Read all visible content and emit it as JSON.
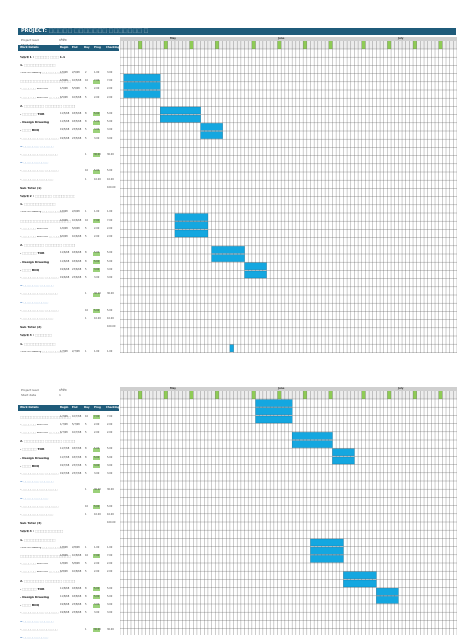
{
  "page_title": "PROJECT: ⬚⬚⬚⬚⬚ ⬚⬚⬚⬚⬚⬚⬚ ⬚⬚⬚⬚⬚⬚⬚ ⬚",
  "meta": [
    {
      "label": "Project lead",
      "value": "บริษัท"
    },
    {
      "label": "Start date",
      "value": "1"
    }
  ],
  "months": [
    "May",
    "June",
    "July"
  ],
  "columns": {
    "task": "Work Details",
    "start": "Begin",
    "end": "End",
    "days": "Day",
    "pct": "Prog",
    "hours": "Checking"
  },
  "rows": [
    {
      "task": "ระยะที่ 1 : ⬚⬚⬚⬚⬚ ⬚⬚⬚ 1.1",
      "type": "bold",
      "start": "",
      "end": "",
      "days": "",
      "pct": "",
      "hours": ""
    },
    {
      "task": "1. ⬚⬚⬚⬚⬚⬚⬚⬚⬚⬚⬚",
      "type": "bold",
      "start": "",
      "end": "",
      "days": "",
      "pct": "",
      "hours": ""
    },
    {
      "task": "- Kick Off Meeting ⬚⬚⬚⬚⬚⬚⬚⬚⬚⬚",
      "type": "",
      "start": "1/5/68",
      "end": "2/5/68",
      "days": "2",
      "pct": "1.00",
      "hours": "3.00"
    },
    {
      "task": "⬚⬚⬚⬚⬚⬚⬚⬚⬚⬚⬚⬚⬚⬚⬚⬚⬚⬚",
      "type": "bold",
      "start": "1/5/68",
      "end": "10/5/68",
      "days": "10",
      "pct": "7.00",
      "hours": "7.00"
    },
    {
      "task": "- ⬚⬚⬚⬚ ⬚⬚ Boom Lift",
      "type": "",
      "start": "1/5/68",
      "end": "5/5/68",
      "days": "5",
      "pct": "2.00",
      "hours": "2.00"
    },
    {
      "task": "- ⬚⬚⬚⬚ ⬚⬚ Boom Lift ⬚⬚ ⬚⬚⬚",
      "type": "",
      "start": "6/5/68",
      "end": "10/5/68",
      "days": "5",
      "pct": "2.00",
      "hours": "2.00"
    },
    {
      "task": "2. ⬚⬚⬚⬚⬚⬚⬚ ⬚⬚⬚⬚⬚⬚ ⬚⬚⬚⬚⬚⬚ TOR",
      "type": "bold",
      "start": "",
      "end": "",
      "days": "",
      "pct": "",
      "hours": ""
    },
    {
      "task": "- ⬚⬚⬚⬚⬚ TOR",
      "type": "bold",
      "start": "11/5/68",
      "end": "18/5/68",
      "days": "8",
      "pct": "5.00",
      "hours": "5.00"
    },
    {
      "task": "- Design Drawing",
      "type": "bold",
      "start": "11/5/68",
      "end": "18/5/68",
      "days": "8",
      "pct": "5.00",
      "hours": "5.00"
    },
    {
      "task": "- ⬚⬚⬚ BOQ",
      "type": "bold",
      "start": "19/5/68",
      "end": "23/5/68",
      "days": "5",
      "pct": "3.00",
      "hours": "3.00"
    },
    {
      "task": "- ⬚⬚⬚⬚⬚⬚⬚⬚⬚⬚ ⬚⬚⬚⬚⬚⬚",
      "type": "",
      "start": "19/5/68",
      "end": "23/5/68",
      "days": "5",
      "pct": "3.00",
      "hours": "3.00"
    },
    {
      "task": "3. ⬚⬚⬚⬚⬚⬚⬚ ⬚⬚⬚⬚⬚⬚",
      "type": "sec",
      "start": "",
      "end": "",
      "days": "",
      "pct": "",
      "hours": ""
    },
    {
      "task": "- ⬚⬚⬚⬚⬚⬚⬚⬚⬚⬚⬚⬚⬚⬚⬚⬚",
      "type": "",
      "start": "",
      "end": "",
      "days": "1",
      "pct": "30.00",
      "hours": "30.00"
    },
    {
      "task": "4. ⬚⬚⬚⬚⬚⬚⬚⬚⬚⬚⬚",
      "type": "sec",
      "start": "",
      "end": "",
      "days": "",
      "pct": "",
      "hours": ""
    },
    {
      "task": "- ⬚⬚⬚⬚⬚⬚⬚⬚⬚⬚ ⬚⬚⬚⬚⬚⬚",
      "type": "",
      "start": "",
      "end": "",
      "days": "10",
      "pct": "5.00",
      "hours": "5.00"
    },
    {
      "task": "- ⬚⬚⬚⬚⬚⬚⬚⬚⬚⬚⬚⬚⬚⬚",
      "type": "",
      "start": "",
      "end": "",
      "days": "1",
      "pct": "10.00",
      "hours": "10.00"
    },
    {
      "task": "Sub Total (1)",
      "type": "sub",
      "start": "",
      "end": "",
      "days": "",
      "pct": "",
      "hours": "100.00"
    },
    {
      "task": "ระยะที่ 2 : ⬚⬚⬚⬚⬚⬚ ⬚⬚⬚⬚⬚⬚⬚⬚⬚⬚⬚",
      "type": "bold",
      "start": "",
      "end": "",
      "days": "",
      "pct": "",
      "hours": ""
    },
    {
      "task": "1. ⬚⬚⬚⬚⬚⬚⬚⬚⬚⬚⬚",
      "type": "bold",
      "start": "",
      "end": "",
      "days": "",
      "pct": "",
      "hours": ""
    },
    {
      "task": "- Kick Off Meeting ⬚⬚⬚⬚⬚⬚⬚⬚⬚⬚",
      "type": "",
      "start": "1/6/68",
      "end": "2/6/68",
      "days": "1",
      "pct": "1.00",
      "hours": "1.00"
    },
    {
      "task": "⬚⬚⬚⬚⬚⬚⬚⬚⬚⬚⬚⬚⬚⬚⬚⬚⬚⬚",
      "type": "bold",
      "start": "1/6/68",
      "end": "10/6/68",
      "days": "10",
      "pct": "7.00",
      "hours": "7.00"
    },
    {
      "task": "- ⬚⬚⬚⬚ ⬚⬚ Boom Lift",
      "type": "",
      "start": "1/6/68",
      "end": "5/6/68",
      "days": "5",
      "pct": "2.00",
      "hours": "2.00"
    },
    {
      "task": "- ⬚⬚⬚⬚ ⬚⬚ Boom Lift ⬚⬚ ⬚⬚⬚",
      "type": "",
      "start": "6/6/68",
      "end": "10/6/68",
      "days": "5",
      "pct": "2.00",
      "hours": "2.00"
    },
    {
      "task": "2. ⬚⬚⬚⬚⬚⬚⬚ ⬚⬚⬚⬚⬚⬚ ⬚⬚⬚⬚⬚⬚ TOR",
      "type": "bold",
      "start": "",
      "end": "",
      "days": "",
      "pct": "",
      "hours": ""
    },
    {
      "task": "- ⬚⬚⬚⬚⬚ TOR",
      "type": "bold",
      "start": "11/6/68",
      "end": "18/6/68",
      "days": "8",
      "pct": "5.00",
      "hours": "5.00"
    },
    {
      "task": "- Design Drawing",
      "type": "bold",
      "start": "11/6/68",
      "end": "18/6/68",
      "days": "8",
      "pct": "5.00",
      "hours": "5.00"
    },
    {
      "task": "- ⬚⬚⬚ BOQ",
      "type": "bold",
      "start": "19/6/68",
      "end": "23/6/68",
      "days": "5",
      "pct": "3.00",
      "hours": "3.00"
    },
    {
      "task": "- ⬚⬚⬚⬚⬚⬚⬚⬚⬚⬚ ⬚⬚⬚⬚⬚⬚",
      "type": "",
      "start": "19/6/68",
      "end": "23/6/68",
      "days": "5",
      "pct": "3.00",
      "hours": "3.00"
    },
    {
      "task": "3. ⬚⬚⬚⬚⬚⬚⬚ ⬚⬚⬚⬚⬚⬚",
      "type": "sec",
      "start": "",
      "end": "",
      "days": "",
      "pct": "",
      "hours": ""
    },
    {
      "task": "- ⬚⬚⬚⬚⬚⬚⬚⬚⬚⬚⬚⬚⬚⬚⬚⬚",
      "type": "",
      "start": "",
      "end": "",
      "days": "1",
      "pct": "30.00",
      "hours": "30.00"
    },
    {
      "task": "4. ⬚⬚⬚⬚⬚⬚⬚⬚⬚⬚⬚",
      "type": "sec",
      "start": "",
      "end": "",
      "days": "",
      "pct": "",
      "hours": ""
    },
    {
      "task": "- ⬚⬚⬚⬚⬚⬚⬚⬚⬚⬚ ⬚⬚⬚⬚⬚⬚",
      "type": "",
      "start": "",
      "end": "",
      "days": "10",
      "pct": "5.00",
      "hours": "5.00"
    },
    {
      "task": "- ⬚⬚⬚⬚⬚⬚⬚⬚⬚⬚⬚⬚⬚⬚",
      "type": "",
      "start": "",
      "end": "",
      "days": "1",
      "pct": "10.00",
      "hours": "10.00"
    },
    {
      "task": "Sub Total (2)",
      "type": "sub",
      "start": "",
      "end": "",
      "days": "",
      "pct": "",
      "hours": "100.00"
    },
    {
      "task": "ระยะที่ 3 : ⬚⬚⬚⬚⬚⬚",
      "type": "bold",
      "start": "",
      "end": "",
      "days": "",
      "pct": "",
      "hours": ""
    },
    {
      "task": "1. ⬚⬚⬚⬚⬚⬚⬚⬚⬚⬚⬚",
      "type": "bold",
      "start": "",
      "end": "",
      "days": "",
      "pct": "",
      "hours": ""
    },
    {
      "task": "- Kick Off Meeting ⬚⬚⬚⬚⬚⬚⬚⬚⬚⬚",
      "type": "",
      "start": "1/7/68",
      "end": "2/7/68",
      "days": "1",
      "pct": "1.00",
      "hours": "1.00"
    }
  ],
  "rows_page2": [
    {
      "task": "⬚⬚⬚⬚⬚⬚⬚⬚⬚⬚⬚⬚⬚⬚⬚⬚⬚⬚",
      "type": "bold",
      "start": "1/7/68",
      "end": "10/7/68",
      "days": "10",
      "pct": "7.00",
      "hours": "7.00"
    },
    {
      "task": "- ⬚⬚⬚⬚ ⬚⬚ Boom Lift",
      "type": "",
      "start": "1/7/68",
      "end": "5/7/68",
      "days": "5",
      "pct": "2.00",
      "hours": "2.00"
    },
    {
      "task": "- ⬚⬚⬚⬚ ⬚⬚ Boom Lift ⬚⬚ ⬚⬚⬚",
      "type": "",
      "start": "6/7/68",
      "end": "10/7/68",
      "days": "5",
      "pct": "2.00",
      "hours": "2.00"
    },
    {
      "task": "2. ⬚⬚⬚⬚⬚⬚⬚ ⬚⬚⬚⬚⬚⬚ ⬚⬚⬚⬚⬚⬚ TOR",
      "type": "bold",
      "start": "",
      "end": "",
      "days": "",
      "pct": "",
      "hours": ""
    },
    {
      "task": "- ⬚⬚⬚⬚⬚ TOR",
      "type": "bold",
      "start": "11/7/68",
      "end": "18/7/68",
      "days": "8",
      "pct": "5.00",
      "hours": "5.00"
    },
    {
      "task": "- Design Drawing",
      "type": "bold",
      "start": "11/7/68",
      "end": "18/7/68",
      "days": "8",
      "pct": "5.00",
      "hours": "5.00"
    },
    {
      "task": "- ⬚⬚⬚ BOQ",
      "type": "bold",
      "start": "19/7/68",
      "end": "23/7/68",
      "days": "5",
      "pct": "3.00",
      "hours": "3.00"
    },
    {
      "task": "- ⬚⬚⬚⬚⬚⬚⬚⬚⬚⬚ ⬚⬚⬚⬚⬚⬚",
      "type": "",
      "start": "19/7/68",
      "end": "23/7/68",
      "days": "5",
      "pct": "3.00",
      "hours": "3.00"
    },
    {
      "task": "3. ⬚⬚⬚⬚⬚⬚⬚ ⬚⬚⬚⬚⬚⬚",
      "type": "sec",
      "start": "",
      "end": "",
      "days": "",
      "pct": "",
      "hours": ""
    },
    {
      "task": "- ⬚⬚⬚⬚⬚⬚⬚⬚⬚⬚⬚⬚⬚⬚⬚⬚",
      "type": "",
      "start": "",
      "end": "",
      "days": "1",
      "pct": "30.00",
      "hours": "30.00"
    },
    {
      "task": "4. ⬚⬚⬚⬚⬚⬚⬚⬚⬚⬚⬚",
      "type": "sec",
      "start": "",
      "end": "",
      "days": "",
      "pct": "",
      "hours": ""
    },
    {
      "task": "- ⬚⬚⬚⬚⬚⬚⬚⬚⬚⬚ ⬚⬚⬚⬚⬚⬚",
      "type": "",
      "start": "",
      "end": "",
      "days": "10",
      "pct": "5.00",
      "hours": "5.00"
    },
    {
      "task": "- ⬚⬚⬚⬚⬚⬚⬚⬚⬚⬚⬚⬚⬚⬚",
      "type": "",
      "start": "",
      "end": "",
      "days": "1",
      "pct": "10.00",
      "hours": "10.00"
    },
    {
      "task": "Sub Total (3)",
      "type": "sub",
      "start": "",
      "end": "",
      "days": "",
      "pct": "",
      "hours": "100.00"
    },
    {
      "task": "ระยะที่ 4 : ⬚⬚⬚⬚⬚⬚⬚⬚⬚⬚",
      "type": "bold",
      "start": "",
      "end": "",
      "days": "",
      "pct": "",
      "hours": ""
    },
    {
      "task": "1. ⬚⬚⬚⬚⬚⬚⬚⬚⬚⬚⬚",
      "type": "bold",
      "start": "",
      "end": "",
      "days": "",
      "pct": "",
      "hours": ""
    },
    {
      "task": "- Kick Off Meeting ⬚⬚⬚⬚⬚⬚⬚⬚⬚⬚",
      "type": "",
      "start": "1/8/68",
      "end": "2/8/68",
      "days": "1",
      "pct": "1.00",
      "hours": "1.00"
    },
    {
      "task": "⬚⬚⬚⬚⬚⬚⬚⬚⬚⬚⬚⬚⬚⬚⬚⬚⬚⬚",
      "type": "bold",
      "start": "1/8/68",
      "end": "10/8/68",
      "days": "10",
      "pct": "7.00",
      "hours": "7.00"
    },
    {
      "task": "- ⬚⬚⬚⬚ ⬚⬚ Boom Lift",
      "type": "",
      "start": "1/8/68",
      "end": "5/8/68",
      "days": "5",
      "pct": "2.00",
      "hours": "2.00"
    },
    {
      "task": "- ⬚⬚⬚⬚ ⬚⬚ Boom Lift ⬚⬚ ⬚⬚⬚",
      "type": "",
      "start": "6/8/68",
      "end": "10/8/68",
      "days": "5",
      "pct": "2.00",
      "hours": "2.00"
    },
    {
      "task": "2. ⬚⬚⬚⬚⬚⬚⬚ ⬚⬚⬚⬚⬚⬚ ⬚⬚⬚⬚⬚⬚ TOR",
      "type": "bold",
      "start": "",
      "end": "",
      "days": "",
      "pct": "",
      "hours": ""
    },
    {
      "task": "- ⬚⬚⬚⬚⬚ TOR",
      "type": "bold",
      "start": "11/8/68",
      "end": "18/8/68",
      "days": "8",
      "pct": "5.00",
      "hours": "5.00"
    },
    {
      "task": "- Design Drawing",
      "type": "bold",
      "start": "11/8/68",
      "end": "18/8/68",
      "days": "8",
      "pct": "5.00",
      "hours": "5.00"
    },
    {
      "task": "- ⬚⬚⬚ BOQ",
      "type": "bold",
      "start": "19/8/68",
      "end": "23/8/68",
      "days": "5",
      "pct": "3.00",
      "hours": "3.00"
    },
    {
      "task": "- ⬚⬚⬚⬚⬚⬚⬚⬚⬚⬚ ⬚⬚⬚⬚⬚⬚",
      "type": "",
      "start": "19/8/68",
      "end": "23/8/68",
      "days": "5",
      "pct": "3.00",
      "hours": "3.00"
    },
    {
      "task": "3. ⬚⬚⬚⬚⬚⬚⬚ ⬚⬚⬚⬚⬚⬚",
      "type": "sec",
      "start": "",
      "end": "",
      "days": "",
      "pct": "",
      "hours": ""
    },
    {
      "task": "- ⬚⬚⬚⬚⬚⬚⬚⬚⬚⬚⬚⬚⬚⬚⬚⬚",
      "type": "",
      "start": "",
      "end": "",
      "days": "1",
      "pct": "30.00",
      "hours": "30.00"
    },
    {
      "task": "4. ⬚⬚⬚⬚⬚⬚⬚⬚⬚⬚⬚",
      "type": "sec",
      "start": "",
      "end": "",
      "days": "",
      "pct": "",
      "hours": ""
    }
  ],
  "colors": {
    "header": "#1f5b7a",
    "bar": "#14a7e0",
    "highlight": "#8fcc55",
    "greenbox": "#9bd17a"
  }
}
